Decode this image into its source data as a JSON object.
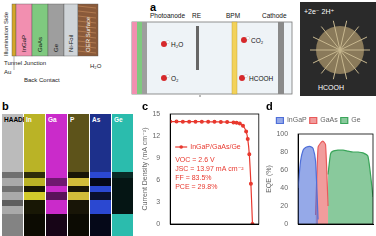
{
  "panel_labels": [
    "a",
    "b",
    "c",
    "d"
  ],
  "panel_a": {
    "illumination": "Illumination Side",
    "device_layers": [
      "Au",
      "InGaP",
      "GaAs",
      "Ge",
      "Ni-Foil",
      "OER Surface"
    ],
    "device_notes": [
      "Tunnel Junction",
      "Back Contact",
      "H₂O"
    ],
    "cell_parts": [
      "Photoanode",
      "RE",
      "BPM",
      "Cathode"
    ],
    "species": [
      "H₂O",
      "CO₂",
      "O₂",
      "HCOOH"
    ],
    "inset_texts": [
      "+2e⁻ 2H⁺",
      "HCOOH"
    ]
  },
  "panel_b": {
    "maps": [
      "HAADF",
      "In",
      "Ga",
      "P",
      "As",
      "Ge"
    ]
  },
  "chart_data": [
    {
      "type": "line",
      "y_label": "Current Density (mA cm⁻²)",
      "x": [
        0,
        0.2,
        0.4,
        0.6,
        0.8,
        1.0,
        1.2,
        1.4,
        1.6,
        1.8,
        2.0,
        2.1,
        2.2,
        2.3,
        2.4,
        2.45,
        2.5,
        2.55,
        2.6
      ],
      "series": [
        {
          "name": "InGaP/GaAs/Ge",
          "color": "#e8382e",
          "marker": "circle",
          "values": [
            13.97,
            13.97,
            13.96,
            13.96,
            13.95,
            13.95,
            13.94,
            13.93,
            13.92,
            13.9,
            13.85,
            13.8,
            13.7,
            13.4,
            12.6,
            11.6,
            9.5,
            5.5,
            0
          ]
        }
      ],
      "xlim": [
        0,
        2.8
      ],
      "ylim": [
        0,
        15
      ],
      "yticks": [
        0,
        3,
        6,
        9,
        12,
        15
      ],
      "tick_labels": "y",
      "grid": false,
      "legend": "center left",
      "annotations": [
        "VOC = 2.6 V",
        "JSC = 13.97 mA cm⁻²",
        "FF = 83.5%",
        "PCE = 29.8%"
      ]
    },
    {
      "type": "area",
      "y_label": "EQE (%)",
      "x": [
        300,
        350,
        400,
        450,
        500,
        550,
        600,
        650,
        700,
        750,
        800,
        850,
        900,
        950,
        1000,
        1100,
        1200,
        1300,
        1400,
        1500,
        1600,
        1700,
        1800
      ],
      "series": [
        {
          "name": "InGaP",
          "color": "#4f6fd8",
          "values": [
            40,
            70,
            82,
            85,
            86,
            86,
            84,
            70,
            5,
            null,
            null,
            null,
            null,
            null,
            null,
            null,
            null,
            null,
            null,
            null,
            null,
            null,
            null
          ]
        },
        {
          "name": "GaAs",
          "color": "#e85a5a",
          "values": [
            null,
            null,
            null,
            null,
            null,
            null,
            null,
            10,
            85,
            90,
            92,
            88,
            20,
            null,
            null,
            null,
            null,
            null,
            null,
            null,
            null,
            null,
            null
          ]
        },
        {
          "name": "Ge",
          "color": "#3aa55a",
          "values": [
            null,
            null,
            null,
            null,
            null,
            null,
            null,
            null,
            null,
            null,
            null,
            null,
            55,
            78,
            81,
            82,
            82,
            81,
            80,
            80,
            79,
            75,
            30
          ]
        }
      ],
      "xlim": [
        300,
        1800
      ],
      "ylim": [
        0,
        100
      ],
      "yticks": [
        0,
        20,
        40,
        60,
        80,
        100
      ],
      "tick_labels": "y",
      "grid": false,
      "legend": "top"
    }
  ]
}
